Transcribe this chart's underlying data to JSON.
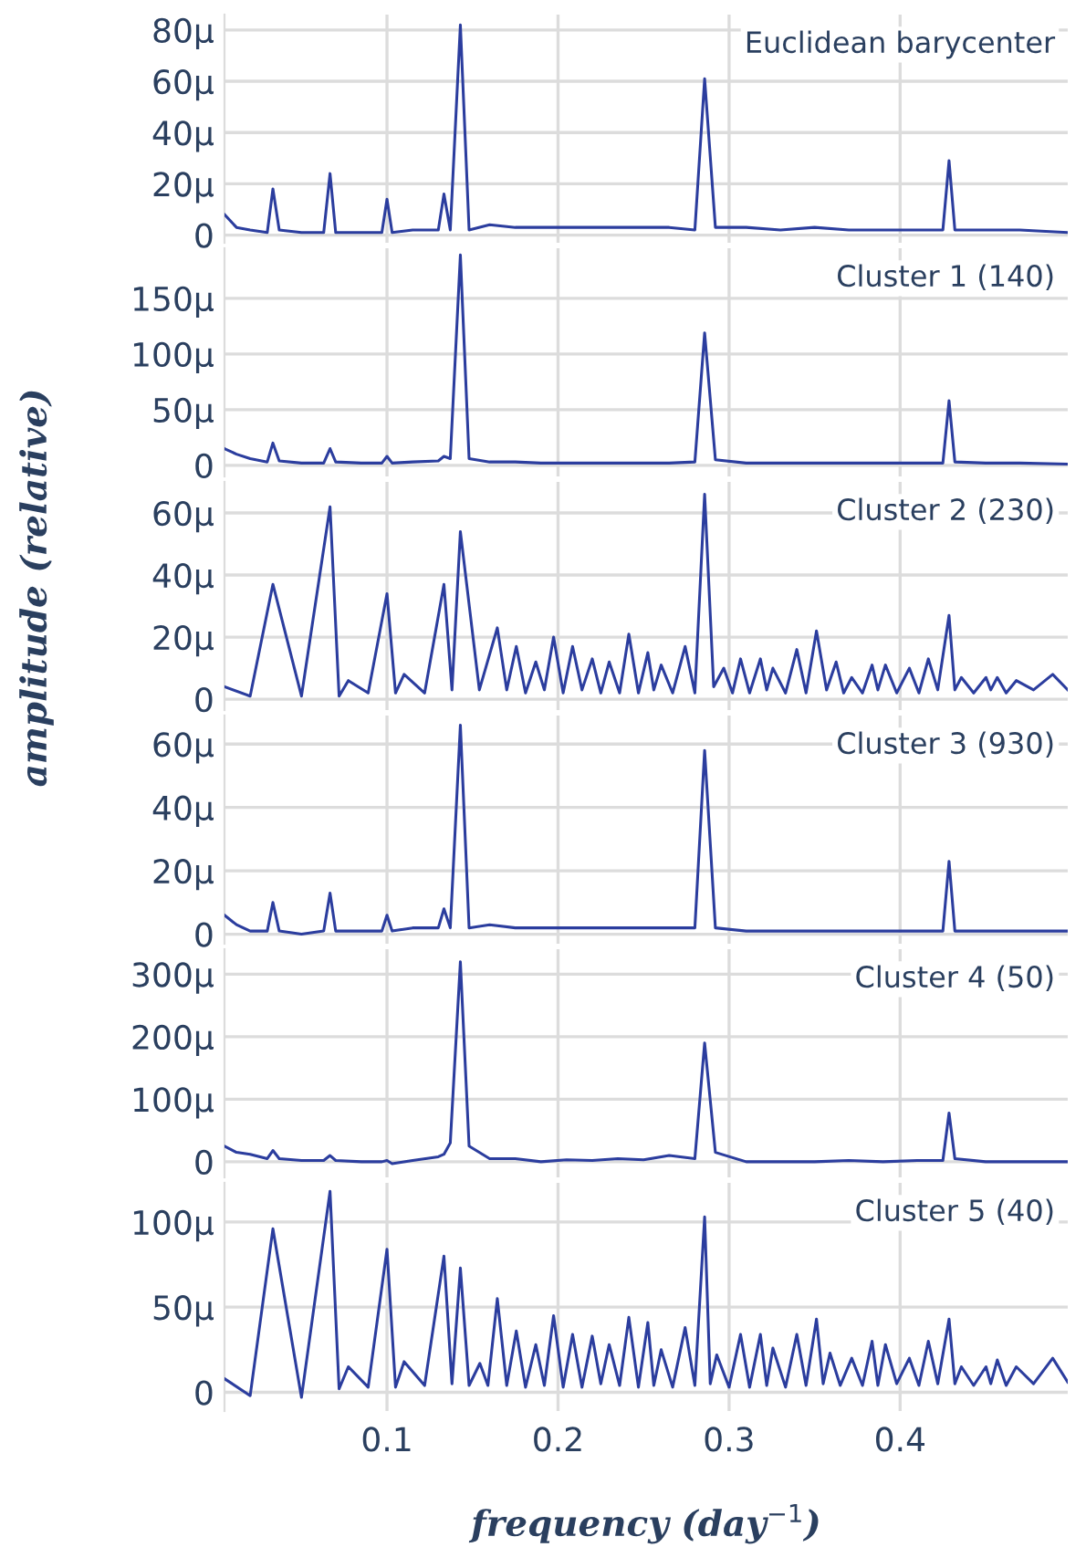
{
  "chart_data": [
    {
      "type": "line",
      "title": "Euclidean barycenter",
      "color": "#2b3d9e",
      "grid": true,
      "tick_labels": "y",
      "xlim": [
        0.005,
        0.498
      ],
      "xticks": [
        0.1,
        0.2,
        0.3,
        0.4
      ],
      "ylim": [
        -3,
        86
      ],
      "yticks": [
        0,
        {
          "value": 20,
          "label": "20μ"
        },
        {
          "value": 40,
          "label": "40μ"
        },
        {
          "value": 60,
          "label": "60μ"
        },
        {
          "value": 80,
          "label": "80μ"
        }
      ],
      "x": [
        0.005,
        0.012,
        0.02,
        0.03,
        0.0333,
        0.037,
        0.05,
        0.063,
        0.0667,
        0.07,
        0.085,
        0.097,
        0.1,
        0.103,
        0.115,
        0.13,
        0.1333,
        0.137,
        0.1429,
        0.148,
        0.16,
        0.175,
        0.19,
        0.205,
        0.22,
        0.235,
        0.25,
        0.265,
        0.28,
        0.2857,
        0.292,
        0.31,
        0.33,
        0.35,
        0.37,
        0.39,
        0.41,
        0.425,
        0.4286,
        0.432,
        0.45,
        0.47,
        0.498
      ],
      "values": [
        8,
        3,
        2,
        1,
        18,
        2,
        1,
        1,
        24,
        1,
        1,
        1,
        14,
        1,
        2,
        2,
        16,
        2,
        82,
        2,
        4,
        3,
        3,
        3,
        3,
        3,
        3,
        3,
        2,
        61,
        3,
        3,
        2,
        3,
        2,
        2,
        2,
        2,
        29,
        2,
        2,
        2,
        1
      ]
    },
    {
      "type": "line",
      "title": "Cluster 1 (140)",
      "color": "#2b3d9e",
      "grid": true,
      "tick_labels": "y",
      "xlim": [
        0.005,
        0.498
      ],
      "xticks": [
        0.1,
        0.2,
        0.3,
        0.4
      ],
      "ylim": [
        -10,
        195
      ],
      "yticks": [
        0,
        {
          "value": 50,
          "label": "50μ"
        },
        {
          "value": 100,
          "label": "100μ"
        },
        {
          "value": 150,
          "label": "150μ"
        }
      ],
      "x": [
        0.005,
        0.012,
        0.02,
        0.03,
        0.0333,
        0.037,
        0.05,
        0.063,
        0.0667,
        0.07,
        0.085,
        0.097,
        0.1,
        0.103,
        0.115,
        0.13,
        0.1333,
        0.137,
        0.1429,
        0.148,
        0.16,
        0.175,
        0.19,
        0.205,
        0.22,
        0.235,
        0.25,
        0.265,
        0.28,
        0.2857,
        0.292,
        0.31,
        0.33,
        0.35,
        0.37,
        0.39,
        0.41,
        0.425,
        0.4286,
        0.432,
        0.45,
        0.47,
        0.498
      ],
      "values": [
        15,
        10,
        6,
        3,
        20,
        4,
        2,
        2,
        15,
        3,
        2,
        2,
        8,
        2,
        3,
        4,
        8,
        6,
        189,
        6,
        3,
        3,
        2,
        2,
        2,
        2,
        2,
        2,
        3,
        119,
        5,
        2,
        2,
        2,
        2,
        2,
        2,
        2,
        58,
        3,
        2,
        2,
        1
      ]
    },
    {
      "type": "line",
      "title": "Cluster 2 (230)",
      "ylabel": "amplitude (relative)",
      "color": "#2b3d9e",
      "grid": true,
      "tick_labels": "y",
      "xlim": [
        0.005,
        0.498
      ],
      "xticks": [
        0.1,
        0.2,
        0.3,
        0.4
      ],
      "ylim": [
        -3.5,
        70
      ],
      "yticks": [
        0,
        {
          "value": 20,
          "label": "20μ"
        },
        {
          "value": 40,
          "label": "40μ"
        },
        {
          "value": 60,
          "label": "60μ"
        }
      ],
      "x": [
        0.005,
        0.02,
        0.0333,
        0.05,
        0.0667,
        0.072,
        0.0774,
        0.089,
        0.1,
        0.105,
        0.11,
        0.122,
        0.1333,
        0.138,
        0.1429,
        0.154,
        0.1645,
        0.17,
        0.1756,
        0.181,
        0.187,
        0.192,
        0.1974,
        0.203,
        0.2085,
        0.214,
        0.22,
        0.225,
        0.2299,
        0.236,
        0.2414,
        0.247,
        0.2525,
        0.256,
        0.2603,
        0.267,
        0.2743,
        0.28,
        0.2857,
        0.291,
        0.2969,
        0.302,
        0.3067,
        0.312,
        0.3183,
        0.322,
        0.3256,
        0.333,
        0.3396,
        0.345,
        0.3511,
        0.357,
        0.3626,
        0.367,
        0.3717,
        0.378,
        0.3836,
        0.387,
        0.3914,
        0.398,
        0.4054,
        0.411,
        0.4165,
        0.422,
        0.4286,
        0.432,
        0.4358,
        0.443,
        0.4502,
        0.453,
        0.4568,
        0.462,
        0.4679,
        0.478,
        0.4892,
        0.498
      ],
      "values": [
        4,
        1,
        37,
        1,
        62,
        1,
        6,
        2,
        34,
        2,
        8,
        2,
        37,
        3,
        54,
        3,
        23,
        3,
        17,
        2,
        12,
        3,
        20,
        2,
        17,
        3,
        13,
        2,
        12,
        2,
        21,
        2,
        15,
        3,
        11,
        2,
        17,
        2,
        66,
        4,
        10,
        2,
        13,
        2,
        13,
        3,
        10,
        2,
        16,
        2,
        22,
        3,
        12,
        2,
        7,
        2,
        11,
        3,
        11,
        2,
        10,
        2,
        13,
        3,
        27,
        3,
        7,
        2,
        7,
        3,
        7,
        2,
        6,
        3,
        8,
        3
      ]
    },
    {
      "type": "line",
      "title": "Cluster 3 (930)",
      "color": "#2b3d9e",
      "grid": true,
      "tick_labels": "y",
      "xlim": [
        0.005,
        0.498
      ],
      "xticks": [
        0.1,
        0.2,
        0.3,
        0.4
      ],
      "ylim": [
        -3,
        69
      ],
      "yticks": [
        0,
        {
          "value": 20,
          "label": "20μ"
        },
        {
          "value": 40,
          "label": "40μ"
        },
        {
          "value": 60,
          "label": "60μ"
        }
      ],
      "x": [
        0.005,
        0.012,
        0.02,
        0.03,
        0.0333,
        0.037,
        0.05,
        0.063,
        0.0667,
        0.07,
        0.085,
        0.097,
        0.1,
        0.103,
        0.115,
        0.13,
        0.1333,
        0.137,
        0.1429,
        0.148,
        0.16,
        0.175,
        0.19,
        0.205,
        0.22,
        0.235,
        0.25,
        0.265,
        0.28,
        0.2857,
        0.292,
        0.31,
        0.33,
        0.35,
        0.37,
        0.39,
        0.41,
        0.425,
        0.4286,
        0.432,
        0.45,
        0.47,
        0.498
      ],
      "values": [
        6,
        3,
        1,
        1,
        10,
        1,
        0,
        1,
        13,
        1,
        1,
        1,
        6,
        1,
        2,
        2,
        8,
        2,
        66,
        2,
        3,
        2,
        2,
        2,
        2,
        2,
        2,
        2,
        2,
        58,
        2,
        1,
        1,
        1,
        1,
        1,
        1,
        1,
        23,
        1,
        1,
        1,
        1
      ]
    },
    {
      "type": "line",
      "title": "Cluster 4 (50)",
      "color": "#2b3d9e",
      "grid": true,
      "tick_labels": "y",
      "xlim": [
        0.005,
        0.498
      ],
      "xticks": [
        0.1,
        0.2,
        0.3,
        0.4
      ],
      "ylim": [
        -25,
        340
      ],
      "yticks": [
        0,
        {
          "value": 100,
          "label": "100μ"
        },
        {
          "value": 200,
          "label": "200μ"
        },
        {
          "value": 300,
          "label": "300μ"
        }
      ],
      "x": [
        0.005,
        0.012,
        0.02,
        0.03,
        0.0333,
        0.037,
        0.05,
        0.063,
        0.0667,
        0.07,
        0.085,
        0.097,
        0.1,
        0.103,
        0.115,
        0.13,
        0.1333,
        0.137,
        0.1429,
        0.148,
        0.16,
        0.175,
        0.19,
        0.205,
        0.22,
        0.235,
        0.25,
        0.265,
        0.28,
        0.2857,
        0.292,
        0.31,
        0.33,
        0.35,
        0.37,
        0.39,
        0.41,
        0.425,
        0.4286,
        0.432,
        0.45,
        0.47,
        0.498
      ],
      "values": [
        25,
        15,
        12,
        5,
        18,
        5,
        2,
        2,
        10,
        2,
        0,
        0,
        2,
        -3,
        2,
        8,
        12,
        30,
        320,
        25,
        5,
        5,
        0,
        3,
        2,
        5,
        3,
        10,
        5,
        190,
        15,
        0,
        0,
        0,
        2,
        0,
        2,
        2,
        78,
        5,
        0,
        0,
        0
      ]
    },
    {
      "type": "line",
      "title": "Cluster 5 (40)",
      "xlabel": "frequency (day$^{−1}$)",
      "color": "#2b3d9e",
      "grid": true,
      "xlim": [
        0.005,
        0.498
      ],
      "xticks": [
        0.1,
        0.2,
        0.3,
        0.4
      ],
      "ylim": [
        -11,
        123
      ],
      "yticks": [
        0,
        {
          "value": 50,
          "label": "50μ"
        },
        {
          "value": 100,
          "label": "100μ"
        }
      ],
      "x": [
        0.005,
        0.02,
        0.0333,
        0.05,
        0.0667,
        0.072,
        0.0774,
        0.089,
        0.1,
        0.105,
        0.11,
        0.122,
        0.1333,
        0.138,
        0.1429,
        0.148,
        0.1543,
        0.159,
        0.1645,
        0.17,
        0.1756,
        0.181,
        0.187,
        0.192,
        0.1974,
        0.203,
        0.2085,
        0.214,
        0.22,
        0.225,
        0.2299,
        0.236,
        0.2414,
        0.247,
        0.2525,
        0.256,
        0.2603,
        0.267,
        0.2743,
        0.28,
        0.2857,
        0.289,
        0.2928,
        0.3,
        0.3067,
        0.312,
        0.3183,
        0.322,
        0.3256,
        0.333,
        0.3396,
        0.345,
        0.3511,
        0.355,
        0.359,
        0.365,
        0.3717,
        0.378,
        0.3836,
        0.387,
        0.3914,
        0.398,
        0.4054,
        0.411,
        0.4165,
        0.422,
        0.4286,
        0.432,
        0.4358,
        0.443,
        0.4502,
        0.453,
        0.4568,
        0.462,
        0.4679,
        0.478,
        0.4892,
        0.498
      ],
      "values": [
        8,
        -2,
        96,
        -3,
        118,
        2,
        15,
        3,
        84,
        3,
        18,
        4,
        80,
        5,
        73,
        4,
        17,
        4,
        55,
        4,
        36,
        3,
        28,
        4,
        45,
        3,
        34,
        3,
        33,
        5,
        28,
        4,
        44,
        3,
        41,
        4,
        25,
        3,
        38,
        4,
        103,
        5,
        22,
        3,
        34,
        3,
        34,
        4,
        26,
        3,
        34,
        4,
        43,
        5,
        23,
        4,
        20,
        4,
        30,
        4,
        28,
        5,
        20,
        4,
        30,
        5,
        43,
        5,
        15,
        4,
        15,
        5,
        19,
        4,
        15,
        5,
        20,
        6
      ]
    }
  ]
}
